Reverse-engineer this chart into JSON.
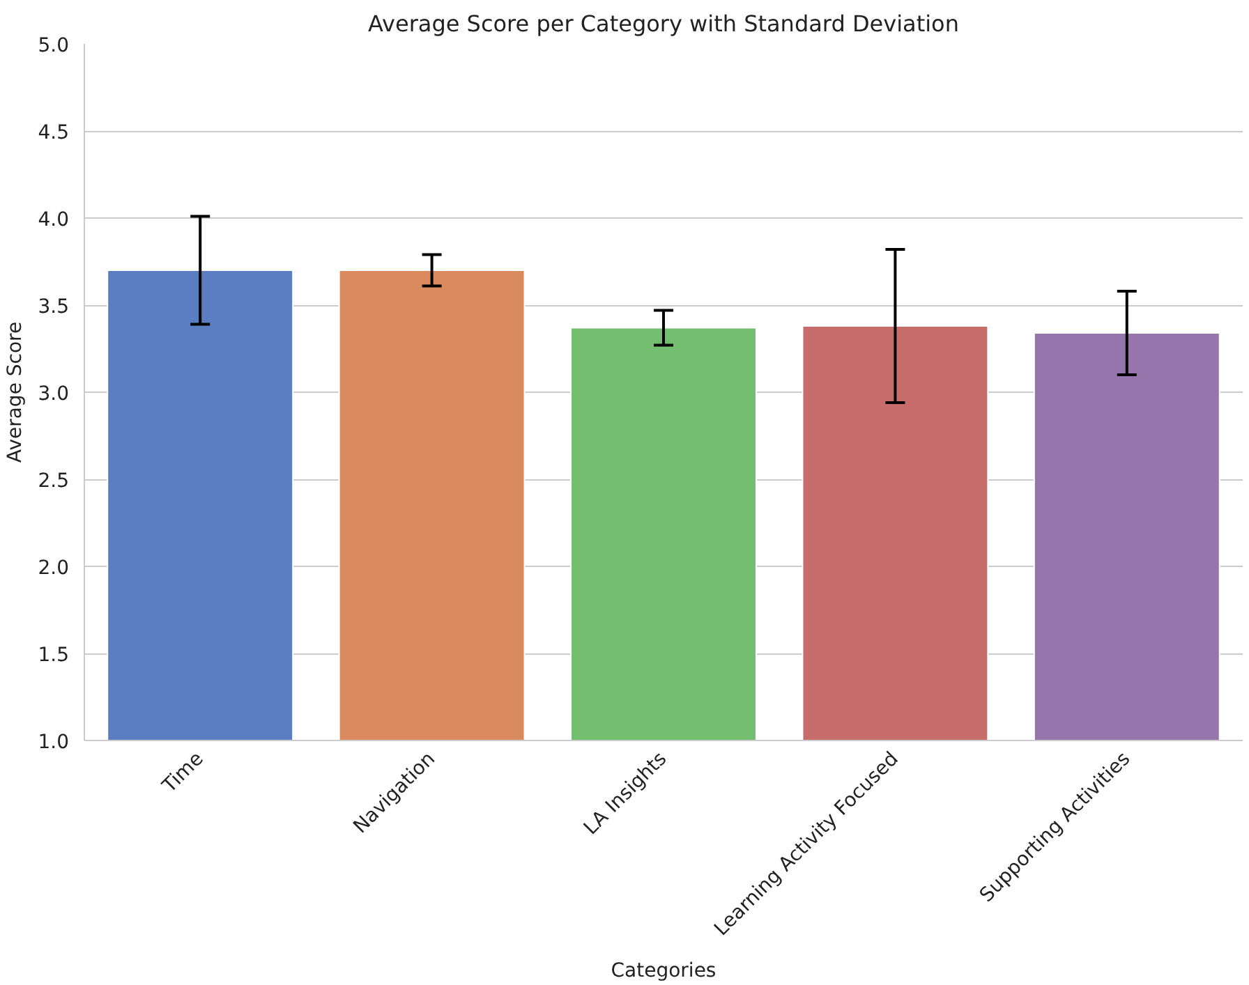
{
  "chart_data": {
    "type": "bar",
    "title": "Average Score per Category with Standard Deviation",
    "xlabel": "Categories",
    "ylabel": "Average Score",
    "categories": [
      "Time",
      "Navigation",
      "LA Insights",
      "Learning Activity Focused",
      "Supporting Activities"
    ],
    "values": [
      3.7,
      3.7,
      3.37,
      3.38,
      3.34
    ],
    "errors": [
      0.31,
      0.09,
      0.1,
      0.44,
      0.24
    ],
    "colors": [
      "#5a7ec1",
      "#d98a5f",
      "#74bf6f",
      "#c66d6b",
      "#9575ab"
    ],
    "ylim": [
      1.0,
      5.0
    ],
    "yticks": [
      {
        "value": 1.0,
        "label": "1.0"
      },
      {
        "value": 1.5,
        "label": "1.5"
      },
      {
        "value": 2.0,
        "label": "2.0"
      },
      {
        "value": 2.5,
        "label": "2.5"
      },
      {
        "value": 3.0,
        "label": "3.0"
      },
      {
        "value": 3.5,
        "label": "3.5"
      },
      {
        "value": 4.0,
        "label": "4.0"
      },
      {
        "value": 4.5,
        "label": "4.5"
      },
      {
        "value": 5.0,
        "label": "5.0"
      }
    ],
    "grid": "y"
  }
}
